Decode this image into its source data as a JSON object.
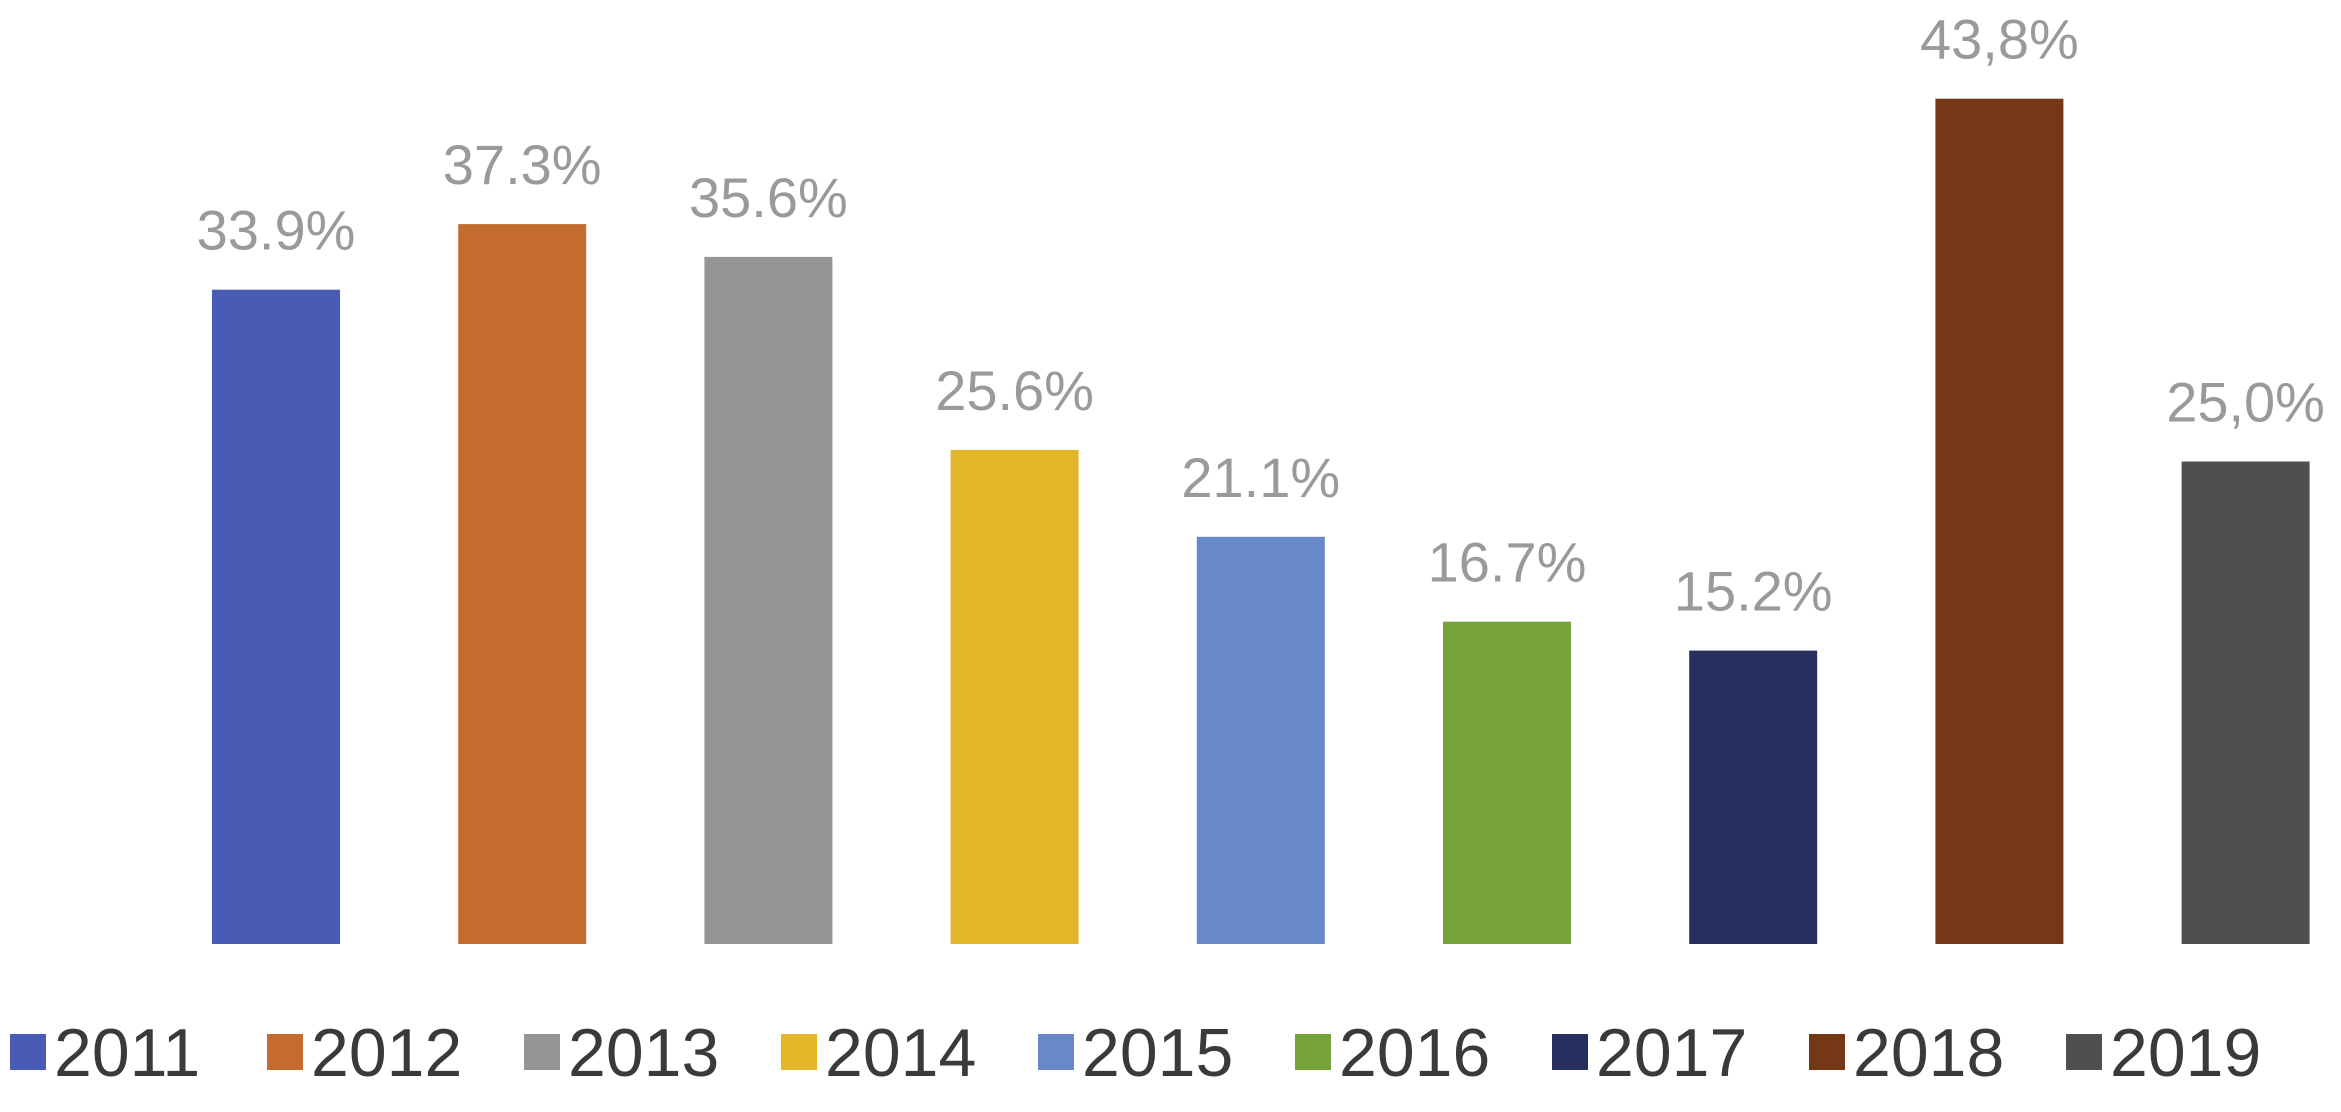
{
  "chart_data": {
    "type": "bar",
    "title": "",
    "xlabel": "",
    "ylabel": "",
    "ylim": [
      0,
      45
    ],
    "grid": false,
    "legend_position": "bottom",
    "categories": [
      "2011",
      "2012",
      "2013",
      "2014",
      "2015",
      "2016",
      "2017",
      "2018",
      "2019"
    ],
    "values": [
      33.9,
      37.3,
      35.6,
      25.6,
      21.1,
      16.7,
      15.2,
      43.8,
      25.0
    ],
    "data_labels": [
      "33.9%",
      "37.3%",
      "35.6%",
      "25.6%",
      "21.1%",
      "16.7%",
      "15.2%",
      "43,8%",
      "25,0%"
    ],
    "colors": [
      "#4a5bb6",
      "#c46c2f",
      "#959595",
      "#e3b62a",
      "#6788c9",
      "#76a23c",
      "#272f5f",
      "#743816",
      "#4f4f4f"
    ]
  }
}
